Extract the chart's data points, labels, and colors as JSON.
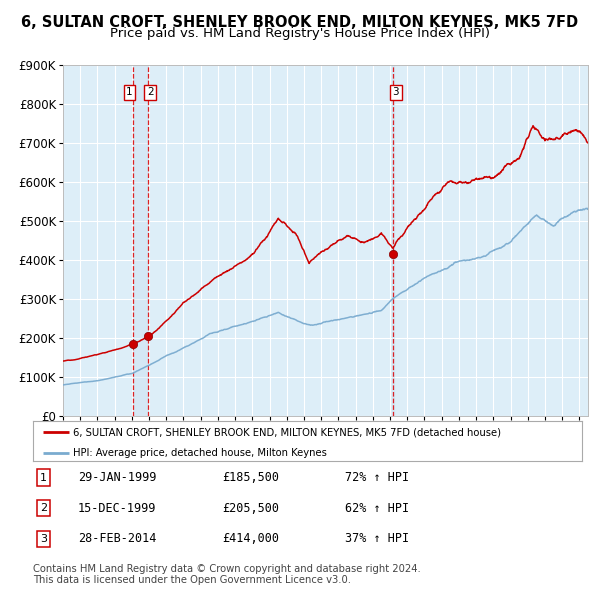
{
  "title": "6, SULTAN CROFT, SHENLEY BROOK END, MILTON KEYNES, MK5 7FD",
  "subtitle": "Price paid vs. HM Land Registry's House Price Index (HPI)",
  "legend_line1": "6, SULTAN CROFT, SHENLEY BROOK END, MILTON KEYNES, MK5 7FD (detached house)",
  "legend_line2": "HPI: Average price, detached house, Milton Keynes",
  "red_color": "#cc0000",
  "blue_color": "#7aabcf",
  "background_color": "#ffffff",
  "plot_bg_color": "#ddeef8",
  "grid_color": "#ffffff",
  "vline_color": "#dd0000",
  "transactions": [
    {
      "num": "1",
      "date": "29-JAN-1999",
      "price": 185500,
      "hpi_pct": "72% ↑ HPI",
      "decimal": 1999.08
    },
    {
      "num": "2",
      "date": "15-DEC-1999",
      "price": 205500,
      "hpi_pct": "62% ↑ HPI",
      "decimal": 1999.96
    },
    {
      "num": "3",
      "date": "28-FEB-2014",
      "price": 414000,
      "hpi_pct": "37% ↑ HPI",
      "decimal": 2014.16
    }
  ],
  "ylim": [
    0,
    900000
  ],
  "yticks": [
    0,
    100000,
    200000,
    300000,
    400000,
    500000,
    600000,
    700000,
    800000,
    900000
  ],
  "xlim_start": 1995.0,
  "xlim_end": 2025.5,
  "footer": "Contains HM Land Registry data © Crown copyright and database right 2024.\nThis data is licensed under the Open Government Licence v3.0."
}
